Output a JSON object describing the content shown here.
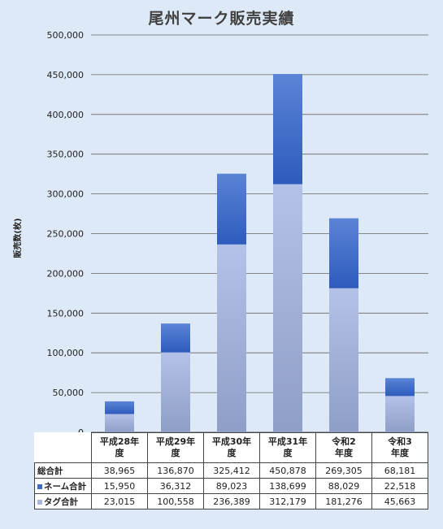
{
  "chart_data": {
    "type": "bar",
    "stacked": true,
    "title": "尾州マーク販売実績",
    "ylabel": "販売数(枚)",
    "xlabel": "",
    "ylim": [
      0,
      500000
    ],
    "yticks": [
      "0",
      "50,000",
      "100,000",
      "150,000",
      "200,000",
      "250,000",
      "300,000",
      "350,000",
      "400,000",
      "450,000",
      "500,000"
    ],
    "grid": true,
    "categories": [
      "平成28年度",
      "平成29年度",
      "平成30年度",
      "平成31年度",
      "令和2年度",
      "令和3年度"
    ],
    "category_labels": [
      [
        "平成28年",
        "度"
      ],
      [
        "平成29年",
        "度"
      ],
      [
        "平成30年",
        "度"
      ],
      [
        "平成31年",
        "度"
      ],
      [
        "令和2",
        "年度"
      ],
      [
        "令和3",
        "年度"
      ]
    ],
    "series": [
      {
        "name": "タグ合計",
        "values": [
          23015,
          100558,
          236389,
          312179,
          181276,
          45663
        ],
        "labels": [
          "23,015",
          "100,558",
          "236,389",
          "312,179",
          "181,276",
          "45,663"
        ],
        "color": "#a9b7e0"
      },
      {
        "name": "ネーム合計",
        "values": [
          15950,
          36312,
          89023,
          138699,
          88029,
          22518
        ],
        "labels": [
          "15,950",
          "36,312",
          "89,023",
          "138,699",
          "88,029",
          "22,518"
        ],
        "color": "#3e6ac8"
      }
    ],
    "total": {
      "name": "総合計",
      "values": [
        38965,
        136870,
        325412,
        450878,
        269305,
        68181
      ],
      "labels": [
        "38,965",
        "136,870",
        "325,412",
        "450,878",
        "269,305",
        "68,181"
      ]
    }
  }
}
